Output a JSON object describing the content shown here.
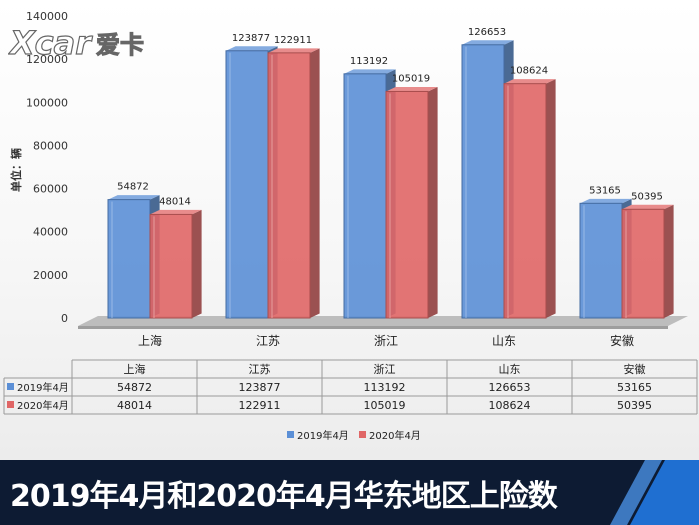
{
  "chart_data": {
    "type": "bar",
    "title": "",
    "ylabel": "单位：辆",
    "xlabel": "",
    "ylim": [
      0,
      140000
    ],
    "yticks": [
      0,
      20000,
      40000,
      60000,
      80000,
      100000,
      120000,
      140000
    ],
    "categories": [
      "上海",
      "江苏",
      "浙江",
      "山东",
      "安徽"
    ],
    "series": [
      {
        "name": "2019年4月",
        "values": [
          54872,
          123877,
          113192,
          126653,
          53165
        ],
        "color": "#5b8fd6"
      },
      {
        "name": "2020年4月",
        "values": [
          48014,
          122911,
          105019,
          108624,
          50395
        ],
        "color": "#e06666"
      }
    ],
    "legend_position": "bottom",
    "grid": false,
    "data_table": true
  },
  "logo": {
    "text": "Xcar",
    "text_cn": "爱卡"
  },
  "banner": {
    "title": "2019年4月和2020年4月华东地区上险数"
  }
}
